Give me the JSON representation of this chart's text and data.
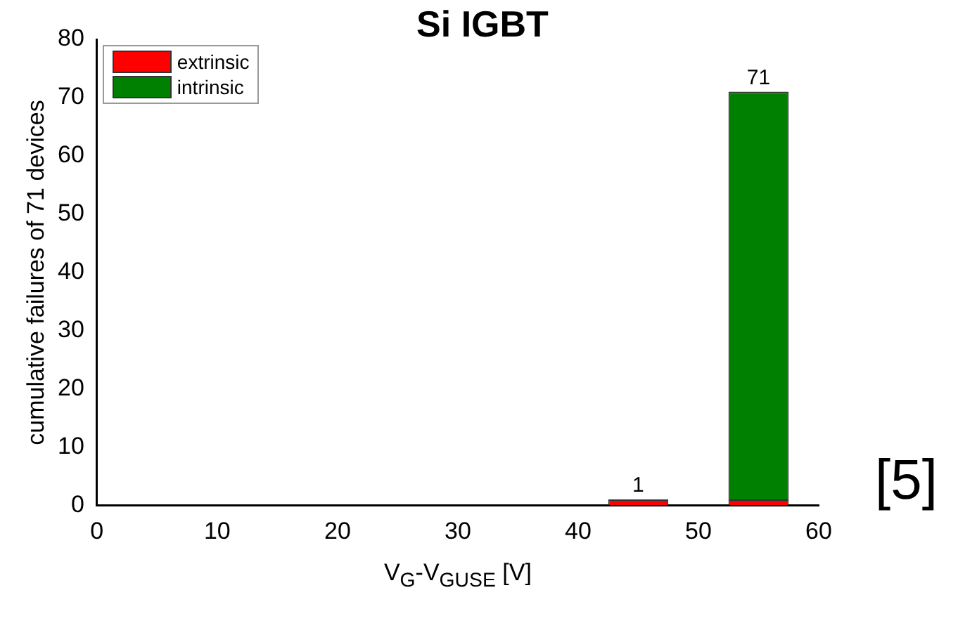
{
  "chart_data": {
    "type": "bar",
    "title": "Si IGBT",
    "xlabel": "V$_{G}$-V$_{GUSE}$ [V]",
    "ylabel": "cumulative failures of 71 devices",
    "x": [
      45,
      55
    ],
    "stacked": true,
    "series": [
      {
        "name": "extrinsic",
        "color": "#ff0000",
        "values": [
          1,
          1
        ]
      },
      {
        "name": "intrinsic",
        "color": "#008000",
        "values": [
          0,
          70
        ]
      }
    ],
    "totals": [
      "1",
      "71"
    ],
    "xlim": [
      0,
      60
    ],
    "xticks": [
      0,
      10,
      20,
      30,
      40,
      50,
      60
    ],
    "ylim": [
      0,
      80
    ],
    "yticks": [
      0,
      10,
      20,
      30,
      40,
      50,
      60,
      70,
      80
    ],
    "legend": "top left",
    "grid": false,
    "annotations": [
      "[5]"
    ]
  }
}
